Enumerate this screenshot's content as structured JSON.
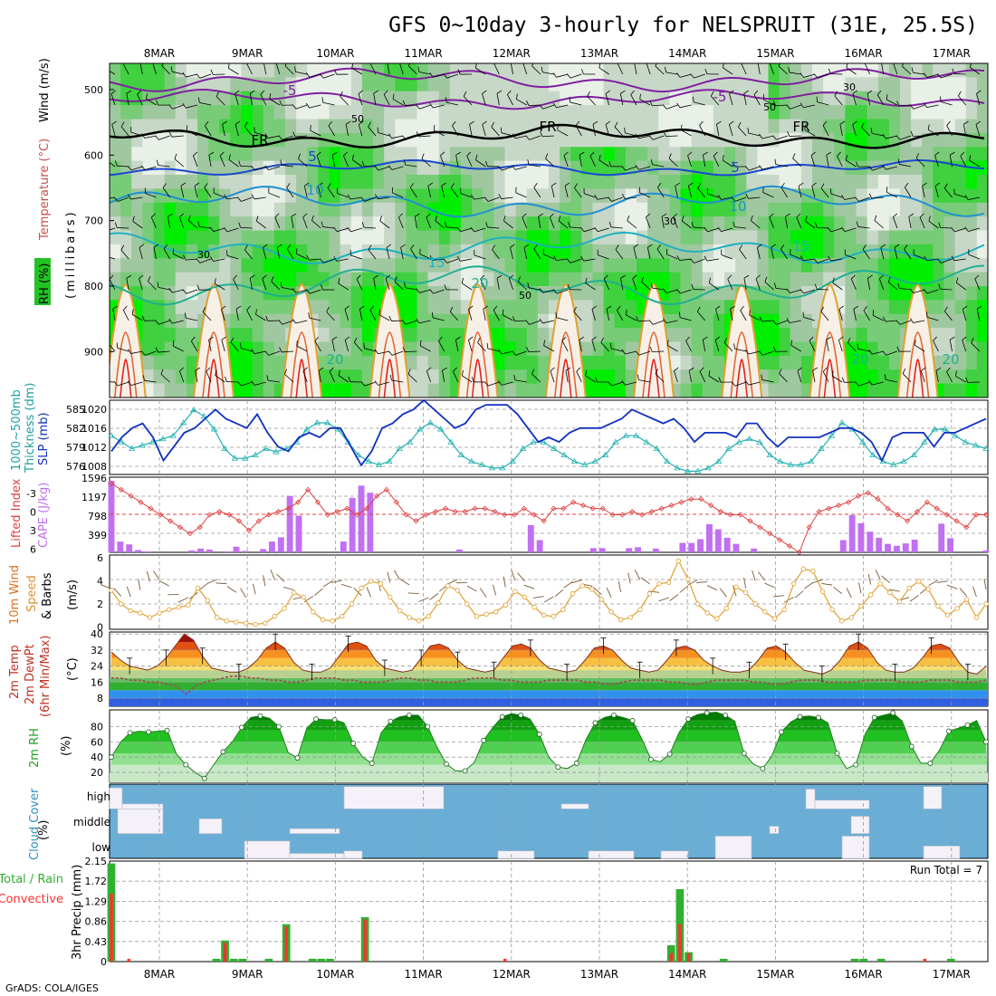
{
  "title": "GFS 0~10day 3-hourly for NELSPRUIT (31E, 25.5S)",
  "credit": "GrADS: COLA/IGES",
  "dates": [
    "8MAR",
    "9MAR",
    "10MAR",
    "11MAR",
    "12MAR",
    "13MAR",
    "14MAR",
    "15MAR",
    "16MAR",
    "17MAR"
  ],
  "colors": {
    "temp_line": "#c03020",
    "slp_line": "#1030c0",
    "thickness_line": "#20b0b0",
    "cape_bar": "#c070f0",
    "li_line": "#e04040",
    "wind_line": "#e0a030",
    "rh_green": "#00cc00",
    "cloud_blue": "#6aaed6",
    "precip_total": "#30b030",
    "precip_conv": "#ff3030"
  },
  "chart_data": [
    {
      "id": "profile",
      "type": "heatmap",
      "ylabel_parts": [
        "RH (%)",
        "Temperature (°C)",
        "Wind (m/s)"
      ],
      "ylabel_units": "(millibars)",
      "yticks": [
        "500",
        "600",
        "700",
        "800",
        "900"
      ],
      "ylim": [
        460,
        970
      ],
      "isotherm_labels": [
        "-5",
        "-5",
        "FR",
        "FR",
        "FR",
        "5",
        "5",
        "10",
        "10",
        "15",
        "15",
        "20",
        "20",
        "20",
        "20"
      ],
      "rh_labels": [
        "30",
        "50",
        "30",
        "50",
        "30",
        "50"
      ]
    },
    {
      "id": "slp_thickness",
      "type": "line",
      "ylabel_parts": [
        "1000~500mb",
        "Thickness (dm)",
        "SLP (mb)"
      ],
      "y_left_ticks": [
        "585",
        "582",
        "579",
        "576"
      ],
      "y_right_ticks": [
        "1020",
        "1016",
        "1012",
        "1008"
      ],
      "series": [
        {
          "name": "SLP (mb)",
          "axis": "right",
          "ylim": [
            1006,
            1022
          ],
          "values": [
            1011,
            1014,
            1016,
            1017,
            1014,
            1009,
            1012,
            1015,
            1016,
            1018,
            1020,
            1018,
            1017,
            1016,
            1019,
            1015,
            1012,
            1011,
            1014,
            1015,
            1014,
            1016,
            1016,
            1012,
            1008,
            1011,
            1016,
            1017,
            1019,
            1020,
            1022,
            1020,
            1018,
            1016,
            1017,
            1020,
            1021,
            1021,
            1021,
            1019,
            1016,
            1013,
            1014,
            1013,
            1015,
            1016,
            1016,
            1016,
            1017,
            1018,
            1020,
            1019,
            1018,
            1017,
            1018,
            1016,
            1013,
            1015,
            1015,
            1015,
            1014,
            1017,
            1017,
            1014,
            1012,
            1014,
            1014,
            1014,
            1014,
            1015,
            1016,
            1016,
            1015,
            1013,
            1009,
            1014,
            1015,
            1015,
            1015,
            1012,
            1015,
            1015,
            1016,
            1017,
            1018
          ]
        },
        {
          "name": "Thickness (dm)",
          "axis": "left",
          "ylim": [
            575,
            586.5
          ],
          "values": [
            581,
            580,
            579,
            579.5,
            580,
            580.5,
            581,
            583,
            585,
            584,
            582,
            579,
            577.5,
            577.5,
            578,
            579,
            578.5,
            579,
            580,
            582,
            583,
            583,
            582,
            580,
            578,
            577,
            576.5,
            577,
            579,
            580,
            582,
            583,
            582,
            580,
            578,
            577,
            576.5,
            576,
            576,
            577,
            579,
            580,
            580,
            579,
            578,
            577,
            576.5,
            577,
            578,
            580,
            581,
            581,
            580,
            579,
            577,
            576,
            575.5,
            575.5,
            576,
            577,
            579,
            580,
            580.5,
            580,
            578,
            577,
            576.5,
            576.5,
            577,
            579,
            581,
            583,
            582,
            580,
            578,
            577,
            576.5,
            577,
            578,
            580,
            582,
            582,
            581,
            580,
            579.5,
            579
          ]
        }
      ]
    },
    {
      "id": "cape_li",
      "type": "bar",
      "ylabel_parts": [
        "CAPE (J/kg)",
        "Lifted Index"
      ],
      "y_left_ticks": [
        "-3",
        "0",
        "3",
        "6"
      ],
      "y_right_ticks": [
        "1596",
        "1197",
        "798",
        "399"
      ],
      "series": [
        {
          "name": "CAPE (J/kg)",
          "ylim": [
            0,
            1600
          ],
          "values": [
            1520,
            230,
            170,
            50,
            20,
            0,
            0,
            0,
            0,
            40,
            80,
            60,
            0,
            20,
            120,
            30,
            0,
            70,
            230,
            320,
            1200,
            780,
            0,
            0,
            0,
            0,
            230,
            1160,
            1420,
            1270,
            0,
            0,
            0,
            0,
            0,
            0,
            0,
            0,
            0,
            60,
            0,
            0,
            0,
            0,
            0,
            0,
            0,
            580,
            260,
            0,
            0,
            0,
            0,
            0,
            90,
            90,
            0,
            0,
            90,
            110,
            0,
            80,
            0,
            0,
            200,
            200,
            280,
            600,
            490,
            310,
            180,
            0,
            80,
            0,
            0,
            0,
            0,
            0,
            0,
            0,
            0,
            0,
            260,
            790,
            620,
            440,
            310,
            180,
            140,
            190,
            270,
            0,
            0,
            610,
            300,
            0,
            0,
            0,
            40
          ]
        },
        {
          "name": "Lifted Index",
          "ylim": [
            6,
            -6
          ],
          "values": [
            -5,
            -4,
            -3,
            -2,
            -1,
            0,
            1,
            2,
            3,
            2,
            0,
            -0.5,
            0,
            1,
            2.5,
            1,
            0,
            -0.5,
            -1,
            -2,
            -4,
            -2,
            0,
            -0.5,
            -1,
            0,
            -1,
            -3,
            -4,
            -2,
            0,
            1,
            0,
            -0.5,
            -1,
            -0.5,
            -0.5,
            -1,
            -1,
            -0.5,
            0,
            0,
            -1,
            0,
            1,
            -1,
            -1,
            -2,
            -1.5,
            -1,
            -1,
            0,
            0,
            -0.5,
            0,
            -0.5,
            -1,
            -1.5,
            -2,
            -2.5,
            -2.5,
            -1.5,
            -0.5,
            0,
            0,
            1,
            2,
            3,
            4,
            5,
            6,
            2,
            -0.5,
            -1,
            -1.5,
            -2,
            -3,
            -3.5,
            -2.5,
            -1,
            0,
            1,
            -0.5,
            -2,
            -1,
            0,
            1,
            2,
            0,
            0
          ]
        }
      ]
    },
    {
      "id": "wind10m",
      "type": "line",
      "ylabel_parts": [
        "10m Wind",
        "Speed",
        "& Barbs",
        "(m/s)"
      ],
      "yticks": [
        "6",
        "4",
        "2",
        "0"
      ],
      "ylim": [
        0,
        6
      ],
      "series": [
        {
          "name": "10m Wind Speed",
          "values": [
            3.2,
            2.0,
            1.4,
            1.2,
            0.8,
            1.2,
            1.5,
            1.7,
            1.9,
            3.4,
            2.3,
            0.8,
            0.5,
            0.4,
            0.3,
            0.2,
            0.3,
            0.9,
            1.6,
            3.0,
            2.6,
            1.3,
            0.6,
            0.5,
            0.9,
            2.0,
            3.4,
            4.0,
            3.8,
            2.6,
            1.4,
            0.8,
            0.5,
            0.9,
            2.1,
            3.6,
            3.2,
            2.0,
            0.9,
            1.1,
            1.3,
            1.9,
            3.1,
            2.6,
            1.7,
            1.0,
            0.9,
            1.5,
            2.9,
            3.6,
            3.3,
            2.4,
            1.3,
            0.6,
            0.8,
            1.5,
            2.9,
            3.8,
            3.9,
            5.8,
            4.2,
            2.0,
            1.2,
            0.7,
            1.6,
            3.5,
            3.0,
            2.0,
            1.3,
            0.7,
            1.5,
            3.8,
            5.1,
            4.9,
            3.1,
            1.5,
            0.5,
            0.8,
            1.8,
            2.8,
            3.8,
            3.0,
            2.2,
            3.4,
            4.0,
            3.3,
            1.8,
            1.0,
            1.6,
            2.4,
            0.8,
            2.0
          ]
        }
      ]
    },
    {
      "id": "temp2m",
      "type": "area",
      "ylabel_parts": [
        "2m Temp",
        "2m DewPt",
        "(6hr Min/Max)",
        "(°C)"
      ],
      "yticks": [
        "40",
        "32",
        "24",
        "16",
        "8"
      ],
      "ylim": [
        4,
        41
      ],
      "series": [
        {
          "name": "2m Temp",
          "values": [
            31,
            27,
            24,
            23,
            22,
            24,
            28,
            34,
            40,
            37,
            29,
            23,
            22,
            21,
            21,
            23,
            27,
            33,
            36,
            33,
            26,
            22,
            21,
            21,
            23,
            29,
            35,
            36,
            34,
            27,
            23,
            22,
            21,
            22,
            28,
            34,
            35,
            33,
            27,
            23,
            22,
            21,
            22,
            28,
            34,
            35,
            33,
            27,
            23,
            22,
            21,
            22,
            27,
            33,
            34,
            32,
            27,
            23,
            22,
            21,
            22,
            27,
            33,
            34,
            32,
            27,
            24,
            22,
            21,
            21,
            22,
            27,
            33,
            34,
            31,
            26,
            22,
            21,
            20,
            22,
            27,
            34,
            36,
            33,
            26,
            22,
            21,
            21,
            23,
            28,
            34,
            35,
            33,
            26,
            21,
            20,
            24
          ]
        },
        {
          "name": "2m DewPt",
          "values": [
            18,
            18,
            17,
            17,
            16,
            16,
            15,
            14,
            10,
            14,
            16,
            17,
            18,
            19,
            19,
            18,
            18,
            17,
            17,
            16,
            16,
            17,
            18,
            18,
            18,
            17,
            17,
            16,
            16,
            16,
            17,
            18,
            18,
            17,
            17,
            16,
            16,
            16,
            17,
            18,
            18,
            18,
            17,
            17,
            16,
            16,
            16,
            17,
            17,
            17,
            17,
            16,
            16,
            15,
            15,
            16,
            17,
            17,
            17,
            17,
            16,
            16,
            15,
            15,
            16,
            17,
            17,
            17,
            17,
            16,
            16,
            15,
            15,
            16,
            17,
            17,
            17,
            16,
            16,
            16,
            16,
            17,
            17,
            17,
            17,
            16,
            16,
            16,
            17,
            17,
            17,
            16,
            16,
            16,
            17
          ]
        }
      ]
    },
    {
      "id": "rh2m",
      "type": "area",
      "ylabel_parts": [
        "2m RH",
        "(%)"
      ],
      "yticks": [
        "80",
        "60",
        "40",
        "20"
      ],
      "ylim": [
        7,
        102
      ],
      "series": [
        {
          "name": "2m RH",
          "values": [
            40,
            60,
            72,
            74,
            73,
            74,
            75,
            44,
            30,
            20,
            12,
            30,
            47,
            60,
            79,
            92,
            94,
            91,
            80,
            46,
            39,
            78,
            90,
            89,
            89,
            85,
            58,
            40,
            32,
            72,
            87,
            93,
            95,
            95,
            80,
            53,
            31,
            22,
            22,
            33,
            62,
            79,
            93,
            97,
            95,
            90,
            70,
            40,
            27,
            25,
            32,
            63,
            85,
            92,
            95,
            92,
            88,
            64,
            37,
            34,
            44,
            72,
            90,
            96,
            98,
            99,
            95,
            87,
            45,
            31,
            25,
            42,
            73,
            86,
            93,
            94,
            92,
            85,
            45,
            25,
            30,
            70,
            92,
            95,
            98,
            87,
            54,
            32,
            32,
            49,
            74,
            78,
            82,
            88,
            60
          ]
        }
      ]
    },
    {
      "id": "cloud",
      "type": "bar",
      "ylabel_parts": [
        "Cloud Cover",
        "(%)"
      ],
      "yticks": [
        "high",
        "middle",
        "low"
      ],
      "ylim": [
        0,
        100
      ]
    },
    {
      "id": "precip",
      "type": "bar",
      "ylabel_parts": [
        "Total / Rain",
        "Convective",
        "3hr Precip (mm)"
      ],
      "yticks": [
        "2.15",
        "1.72",
        "1.29",
        "0.86",
        "0.43",
        "0"
      ],
      "ylim": [
        0,
        2.15
      ],
      "run_total": "Run Total = 7",
      "series": [
        {
          "name": "Total",
          "values": [
            2.1,
            0,
            0,
            0,
            0,
            0,
            0,
            0,
            0,
            0,
            0,
            0,
            0.06,
            0.45,
            0.06,
            0.06,
            0,
            0,
            0.06,
            0,
            0.8,
            0,
            0,
            0.06,
            0.06,
            0.06,
            0,
            0,
            0,
            0.95,
            0,
            0,
            0,
            0,
            0,
            0,
            0,
            0,
            0,
            0,
            0,
            0,
            0,
            0,
            0,
            0,
            0,
            0,
            0,
            0,
            0,
            0,
            0,
            0,
            0,
            0,
            0,
            0,
            0,
            0,
            0,
            0,
            0,
            0,
            0.35,
            1.55,
            0.2,
            0,
            0,
            0,
            0.06,
            0,
            0,
            0,
            0,
            0,
            0,
            0,
            0,
            0,
            0,
            0,
            0,
            0,
            0,
            0.06,
            0.06,
            0,
            0.06,
            0,
            0,
            0,
            0,
            0,
            0,
            0,
            0.06,
            0,
            0,
            0,
            0
          ]
        },
        {
          "name": "Convective",
          "values": [
            1.45,
            0,
            0.06,
            0,
            0,
            0,
            0,
            0,
            0,
            0,
            0,
            0,
            0,
            0.4,
            0,
            0,
            0,
            0,
            0,
            0,
            0.75,
            0,
            0,
            0,
            0,
            0,
            0,
            0,
            0,
            0.9,
            0,
            0,
            0,
            0,
            0,
            0,
            0,
            0,
            0,
            0,
            0,
            0,
            0,
            0,
            0,
            0.06,
            0,
            0,
            0,
            0,
            0,
            0,
            0,
            0,
            0,
            0,
            0,
            0,
            0,
            0,
            0,
            0,
            0,
            0,
            0.18,
            0.8,
            0.18,
            0,
            0,
            0,
            0,
            0,
            0,
            0,
            0,
            0,
            0,
            0,
            0,
            0,
            0,
            0,
            0,
            0,
            0,
            0,
            0,
            0,
            0,
            0,
            0,
            0,
            0,
            0.06,
            0,
            0,
            0,
            0
          ]
        }
      ]
    }
  ]
}
